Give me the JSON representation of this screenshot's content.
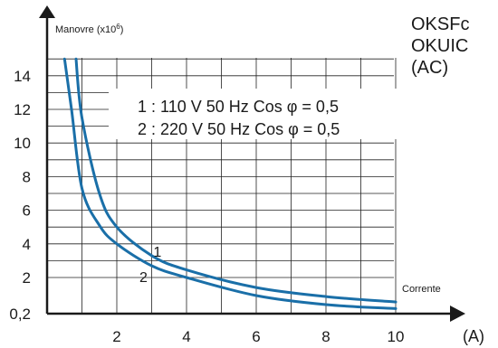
{
  "chart_data": {
    "type": "line",
    "title_lines": [
      "OKSFc",
      "OKUIC",
      "(AC)"
    ],
    "ylabel_prefix": "Manovre (x10",
    "ylabel_sup": "6",
    "ylabel_suffix": ")",
    "xlabel": "Corrente",
    "xunit": "(A)",
    "xlim": [
      0,
      11
    ],
    "ylim": [
      0.2,
      15
    ],
    "x_ticks": [
      "2",
      "4",
      "6",
      "8",
      "10"
    ],
    "y_ticks": [
      "14",
      "12",
      "10",
      "8",
      "6",
      "4",
      "2",
      "0,2"
    ],
    "grid": true,
    "legend": {
      "placement": "upper-center",
      "entries": [
        "1 : 110 V 50 Hz Cos φ = 0,5",
        "2 : 220 V 50 Hz Cos φ = 0,5"
      ]
    },
    "series": [
      {
        "name": "1",
        "color": "#1a6fa8",
        "x": [
          0.83,
          1,
          1.5,
          2,
          3,
          4,
          6,
          8,
          10
        ],
        "y": [
          15,
          11.5,
          7,
          5,
          3.3,
          2.45,
          1.5,
          1.05,
          0.78
        ]
      },
      {
        "name": "2",
        "color": "#1a6fa8",
        "x": [
          0.5,
          0.7,
          1,
          1.5,
          2,
          3,
          4,
          6,
          8,
          10
        ],
        "y": [
          15,
          12,
          7.3,
          5.1,
          4,
          2.7,
          2,
          1.1,
          0.65,
          0.45
        ]
      }
    ]
  }
}
